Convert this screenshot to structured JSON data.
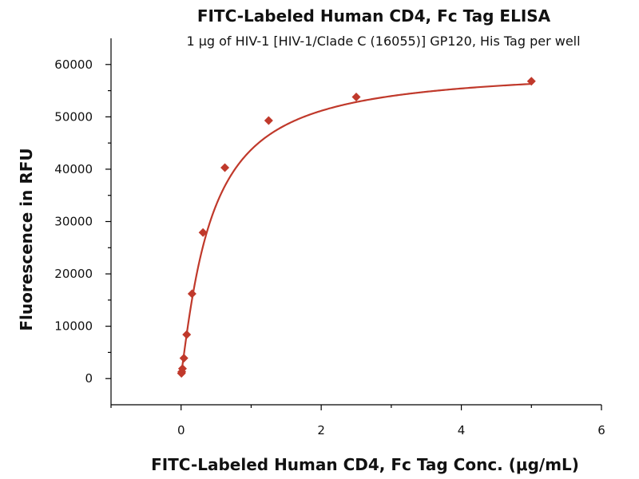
{
  "chart_data": {
    "type": "scatter",
    "title": "FITC-Labeled Human CD4, Fc Tag ELISA",
    "subtitle": "1 μg of HIV-1 [HIV-1/Clade C (16055)] GP120, His Tag per well",
    "xlabel": "FITC-Labeled Human CD4, Fc Tag Conc. (μg/mL)",
    "ylabel": "Fluorescence in RFU",
    "xlim": [
      -1,
      6
    ],
    "ylim": [
      -5000,
      65000
    ],
    "xticks": [
      0,
      2,
      4,
      6
    ],
    "xminor": [
      -1,
      1,
      3,
      5
    ],
    "yticks": [
      0,
      10000,
      20000,
      30000,
      40000,
      50000,
      60000
    ],
    "yminor": [
      5000,
      15000,
      25000,
      35000,
      45000,
      55000
    ],
    "grid": false,
    "legend": "none",
    "series": [
      {
        "marker": "diamond",
        "color": "#c0392b",
        "x": [
          0.005,
          0.01,
          0.02,
          0.04,
          0.08,
          0.156,
          0.313,
          0.625,
          1.25,
          2.5,
          5.0
        ],
        "y": [
          1000,
          1300,
          1900,
          3900,
          8400,
          16200,
          27900,
          40300,
          49300,
          53800,
          56800
        ]
      }
    ],
    "fit": {
      "type": "4PL",
      "color": "#c0392b",
      "bottom": 900,
      "top": 59500,
      "ec50": 0.42,
      "hill": 1.15,
      "x_range": [
        0,
        5.0
      ]
    }
  }
}
